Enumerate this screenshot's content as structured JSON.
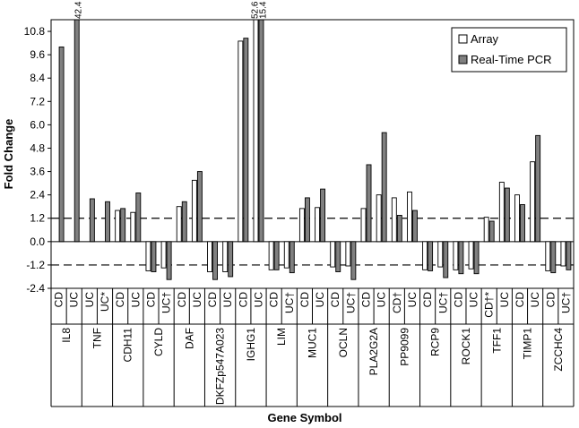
{
  "chart_data": {
    "type": "bar",
    "title": "",
    "xlabel": "Gene Symbol",
    "ylabel": "Fold Change",
    "ylim": [
      -2.4,
      11.4
    ],
    "yticks": [
      "10.8",
      "9.6",
      "8.4",
      "7.2",
      "6.0",
      "4.8",
      "3.6",
      "2.4",
      "1.2",
      "0.0",
      "-1.2",
      "-2.4"
    ],
    "ytick_values": [
      10.8,
      9.6,
      8.4,
      7.2,
      6.0,
      4.8,
      3.6,
      2.4,
      1.2,
      0.0,
      -1.2,
      -2.4
    ],
    "threshold_lines": [
      1.2,
      -1.2
    ],
    "groups": [
      {
        "gene": "IL8",
        "cats": [
          {
            "label": "CD",
            "array": null,
            "pcr": 10.0
          },
          {
            "label": "UC",
            "array": null,
            "pcr": 11.4,
            "annotation": "42.4"
          }
        ]
      },
      {
        "gene": "TNF",
        "cats": [
          {
            "label": "UC",
            "array": null,
            "pcr": 2.2
          },
          {
            "label": "UC*",
            "array": null,
            "pcr": 2.05
          }
        ]
      },
      {
        "gene": "CDH11",
        "cats": [
          {
            "label": "CD",
            "array": 1.6,
            "pcr": 1.7
          },
          {
            "label": "UC",
            "array": 1.5,
            "pcr": 2.5
          }
        ]
      },
      {
        "gene": "CYLD",
        "cats": [
          {
            "label": "CD",
            "array": -1.5,
            "pcr": -1.55
          },
          {
            "label": "UC†",
            "array": -1.35,
            "pcr": -1.95
          }
        ]
      },
      {
        "gene": "DAF",
        "cats": [
          {
            "label": "CD",
            "array": 1.8,
            "pcr": 2.05
          },
          {
            "label": "UC",
            "array": 3.15,
            "pcr": 3.6
          }
        ]
      },
      {
        "gene": "DKFZp547A023",
        "cats": [
          {
            "label": "CD",
            "array": -1.55,
            "pcr": -1.95
          },
          {
            "label": "UC",
            "array": -1.55,
            "pcr": -1.8
          }
        ]
      },
      {
        "gene": "IGHG1",
        "cats": [
          {
            "label": "CD",
            "array": 10.3,
            "pcr": 10.45
          },
          {
            "label": "UC",
            "array": 11.4,
            "pcr": 11.4,
            "annotation_array": "52.6",
            "annotation": "15.4"
          }
        ]
      },
      {
        "gene": "LIM",
        "cats": [
          {
            "label": "CD",
            "array": -1.45,
            "pcr": -1.45
          },
          {
            "label": "UC†",
            "array": -1.35,
            "pcr": -1.6
          }
        ]
      },
      {
        "gene": "MUC1",
        "cats": [
          {
            "label": "CD",
            "array": 1.7,
            "pcr": 2.25
          },
          {
            "label": "UC",
            "array": 1.75,
            "pcr": 2.7
          }
        ]
      },
      {
        "gene": "OCLN",
        "cats": [
          {
            "label": "CD",
            "array": -1.3,
            "pcr": -1.55
          },
          {
            "label": "UC†",
            "array": -1.25,
            "pcr": -1.95
          }
        ]
      },
      {
        "gene": "PLA2G2A",
        "cats": [
          {
            "label": "CD",
            "array": 1.7,
            "pcr": 3.95
          },
          {
            "label": "UC",
            "array": 2.4,
            "pcr": 5.6
          }
        ]
      },
      {
        "gene": "PP9099",
        "cats": [
          {
            "label": "CD†",
            "array": 2.25,
            "pcr": 1.35
          },
          {
            "label": "UC",
            "array": 2.55,
            "pcr": 1.6
          }
        ]
      },
      {
        "gene": "RCP9",
        "cats": [
          {
            "label": "CD",
            "array": -1.45,
            "pcr": -1.5
          },
          {
            "label": "UC†",
            "array": -1.3,
            "pcr": -1.85
          }
        ]
      },
      {
        "gene": "ROCK1",
        "cats": [
          {
            "label": "CD",
            "array": -1.45,
            "pcr": -1.65
          },
          {
            "label": "UC",
            "array": -1.4,
            "pcr": -1.65
          }
        ]
      },
      {
        "gene": "TFF1",
        "cats": [
          {
            "label": "CD†*",
            "array": 1.25,
            "pcr": 1.05
          },
          {
            "label": "UC",
            "array": 3.05,
            "pcr": 2.75
          }
        ]
      },
      {
        "gene": "TIMP1",
        "cats": [
          {
            "label": "CD",
            "array": 2.4,
            "pcr": 1.9
          },
          {
            "label": "UC",
            "array": 4.1,
            "pcr": 5.45
          }
        ]
      },
      {
        "gene": "ZCCHC4",
        "cats": [
          {
            "label": "CD",
            "array": -1.5,
            "pcr": -1.6
          },
          {
            "label": "UC†",
            "array": -1.25,
            "pcr": -1.45
          }
        ]
      }
    ],
    "legend": {
      "position": "top-right",
      "entries": [
        {
          "name": "Array",
          "color": "#ffffff"
        },
        {
          "name": "Real-Time PCR",
          "color": "#808080"
        }
      ]
    }
  }
}
